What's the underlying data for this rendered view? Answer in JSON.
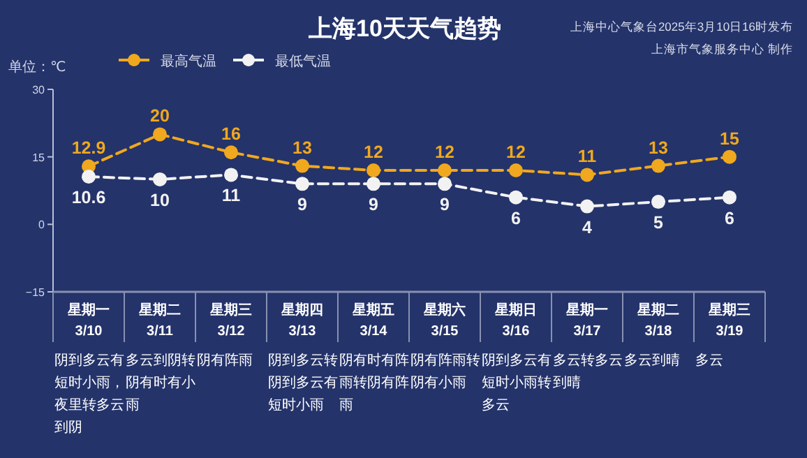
{
  "chart_data": {
    "type": "line",
    "title": "上海10天天气趋势",
    "ylabel": "单位：℃",
    "categories": [
      "星期一\n3/10",
      "星期二\n3/11",
      "星期三\n3/12",
      "星期四\n3/13",
      "星期五\n3/14",
      "星期六\n3/15",
      "星期日\n3/16",
      "星期一\n3/17",
      "星期二\n3/18",
      "星期三\n3/19"
    ],
    "series": [
      {
        "name": "最高气温",
        "color": "#f0a81e",
        "values": [
          12.9,
          20,
          16,
          13,
          12,
          12,
          12,
          11,
          13,
          15
        ]
      },
      {
        "name": "最低气温",
        "color": "#f2f2f2",
        "values": [
          10.6,
          10,
          11,
          9,
          9,
          9,
          6,
          4,
          5,
          6
        ]
      }
    ],
    "ylim": [
      -15,
      30
    ],
    "yticks": [
      -15,
      0,
      15,
      30
    ],
    "grid": false,
    "legend": "top left",
    "marker": "circle",
    "line_style": "dashed",
    "data_labels": true,
    "annotations": [
      "上海中心气象台2025年3月10日16时发布",
      "上海市气象服务中心 制作",
      "阴到多云有短时小雨，夜里转多云到阴",
      "多云到阴转阴有时有小雨",
      "阴有阵雨",
      "阴到多云转阴到多云有短时小雨",
      "阴有时有阵雨转阴有阵雨",
      "阴有阵雨转阴有小雨",
      "阴到多云有短时小雨转多云",
      "多云转多云到晴",
      "多云到晴",
      "多云"
    ]
  }
}
